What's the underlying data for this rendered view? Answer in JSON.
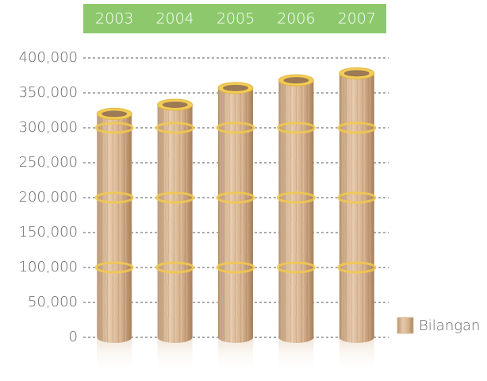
{
  "chart_data": {
    "type": "bar",
    "categories": [
      "2003",
      "2004",
      "2005",
      "2006",
      "2007"
    ],
    "series": [
      {
        "name": "Bilangan",
        "color": "#d8b896",
        "values": [
          320000,
          333000,
          357000,
          368000,
          378000
        ]
      }
    ],
    "ylim": [
      0,
      400000
    ],
    "yticks": [
      0,
      {
        "value": 50000,
        "label": "50,000"
      },
      {
        "value": 100000,
        "label": "100,000"
      },
      {
        "value": 150000,
        "label": "150,000"
      },
      {
        "value": 200000,
        "label": "200,000"
      },
      {
        "value": 250000,
        "label": "250,000"
      },
      {
        "value": 300000,
        "label": "300,000"
      },
      {
        "value": 350000,
        "label": "350,000"
      },
      {
        "value": 400000,
        "label": "400,000"
      }
    ],
    "grid": true,
    "legend": "right",
    "category_band_color": "#8dc96c"
  }
}
